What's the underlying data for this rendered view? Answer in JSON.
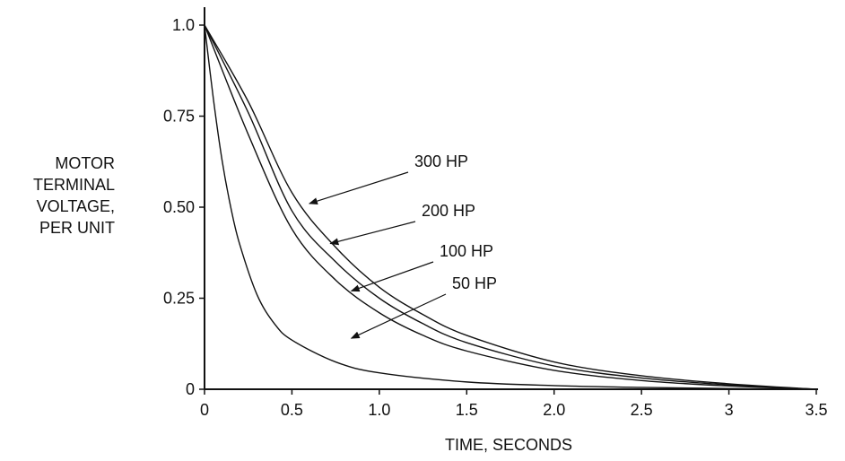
{
  "chart_data": {
    "type": "line",
    "title": "",
    "xlabel": "TIME, SECONDS",
    "ylabel_lines": [
      "MOTOR",
      "TERMINAL",
      "VOLTAGE,",
      "PER UNIT"
    ],
    "xlim": [
      0,
      3.5
    ],
    "ylim": [
      0,
      1.0
    ],
    "x_ticks": [
      "0",
      "0.5",
      "1.0",
      "1.5",
      "2.0",
      "2.5",
      "3",
      "3.5"
    ],
    "y_ticks": [
      "0",
      "0.25",
      "0.50",
      "0.75",
      "1.0"
    ],
    "grid": false,
    "series": [
      {
        "name": "300 HP",
        "x": [
          0,
          0.25,
          0.5,
          0.75,
          1.0,
          1.25,
          1.5,
          2.0,
          2.5,
          3.0,
          3.5
        ],
        "y": [
          1.0,
          0.79,
          0.54,
          0.39,
          0.28,
          0.205,
          0.148,
          0.075,
          0.037,
          0.015,
          0.0
        ]
      },
      {
        "name": "200 HP",
        "x": [
          0,
          0.25,
          0.5,
          0.75,
          1.0,
          1.25,
          1.5,
          2.0,
          2.5,
          3.0,
          3.5
        ],
        "y": [
          1.0,
          0.76,
          0.49,
          0.35,
          0.25,
          0.18,
          0.128,
          0.064,
          0.031,
          0.012,
          0.0
        ]
      },
      {
        "name": "100 HP",
        "x": [
          0,
          0.25,
          0.5,
          0.75,
          1.0,
          1.25,
          1.5,
          2.0,
          2.5,
          3.0,
          3.5
        ],
        "y": [
          1.0,
          0.7,
          0.44,
          0.3,
          0.21,
          0.148,
          0.105,
          0.052,
          0.024,
          0.009,
          0.0
        ]
      },
      {
        "name": "50 HP",
        "x": [
          0,
          0.05,
          0.1,
          0.15,
          0.2,
          0.3,
          0.4,
          0.5,
          0.75,
          1.0,
          1.5,
          2.0,
          2.5,
          3.0,
          3.5
        ],
        "y": [
          1.0,
          0.8,
          0.63,
          0.5,
          0.4,
          0.26,
          0.18,
          0.135,
          0.075,
          0.045,
          0.02,
          0.01,
          0.005,
          0.002,
          0.0
        ]
      }
    ],
    "annotations": [
      {
        "text": "300 HP",
        "series": "300 HP",
        "arrow_to": [
          0.6,
          0.51
        ]
      },
      {
        "text": "200 HP",
        "series": "200 HP",
        "arrow_to": [
          0.72,
          0.4
        ]
      },
      {
        "text": "100 HP",
        "series": "100 HP",
        "arrow_to": [
          0.84,
          0.27
        ]
      },
      {
        "text": "50 HP",
        "series": "50 HP",
        "arrow_to": [
          0.84,
          0.14
        ]
      }
    ]
  }
}
